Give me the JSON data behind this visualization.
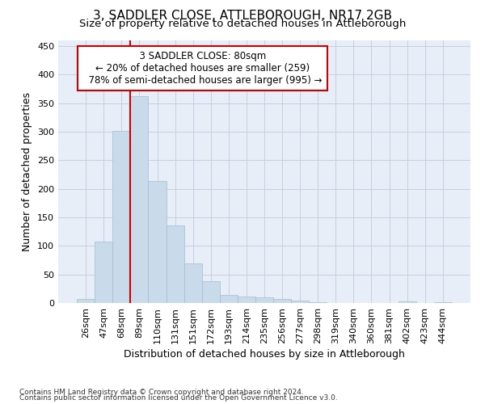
{
  "title": "3, SADDLER CLOSE, ATTLEBOROUGH, NR17 2GB",
  "subtitle": "Size of property relative to detached houses in Attleborough",
  "xlabel": "Distribution of detached houses by size in Attleborough",
  "ylabel": "Number of detached properties",
  "footnote1": "Contains HM Land Registry data © Crown copyright and database right 2024.",
  "footnote2": "Contains public sector information licensed under the Open Government Licence v3.0.",
  "bar_color": "#c9daea",
  "bar_edgecolor": "#a0bdd0",
  "annotation_box_color": "#cc0000",
  "vline_color": "#cc0000",
  "grid_color": "#c8d0e0",
  "bg_color": "#e8eef8",
  "categories": [
    "26sqm",
    "47sqm",
    "68sqm",
    "89sqm",
    "110sqm",
    "131sqm",
    "151sqm",
    "172sqm",
    "193sqm",
    "214sqm",
    "235sqm",
    "256sqm",
    "277sqm",
    "298sqm",
    "319sqm",
    "340sqm",
    "360sqm",
    "381sqm",
    "402sqm",
    "423sqm",
    "444sqm"
  ],
  "values": [
    7,
    108,
    302,
    362,
    214,
    136,
    69,
    38,
    14,
    11,
    10,
    7,
    4,
    2,
    0,
    0,
    0,
    0,
    3,
    0,
    2
  ],
  "ylim": [
    0,
    460
  ],
  "yticks": [
    0,
    50,
    100,
    150,
    200,
    250,
    300,
    350,
    400,
    450
  ],
  "property_label": "3 SADDLER CLOSE: 80sqm",
  "smaller_pct": "20%",
  "smaller_count": 259,
  "larger_pct": "78%",
  "larger_type": "semi-detached",
  "larger_count": 995,
  "vline_x_index": 3.0,
  "annotation_fontsize": 8.5,
  "title_fontsize": 11,
  "subtitle_fontsize": 9.5,
  "axis_label_fontsize": 9,
  "tick_fontsize": 8
}
